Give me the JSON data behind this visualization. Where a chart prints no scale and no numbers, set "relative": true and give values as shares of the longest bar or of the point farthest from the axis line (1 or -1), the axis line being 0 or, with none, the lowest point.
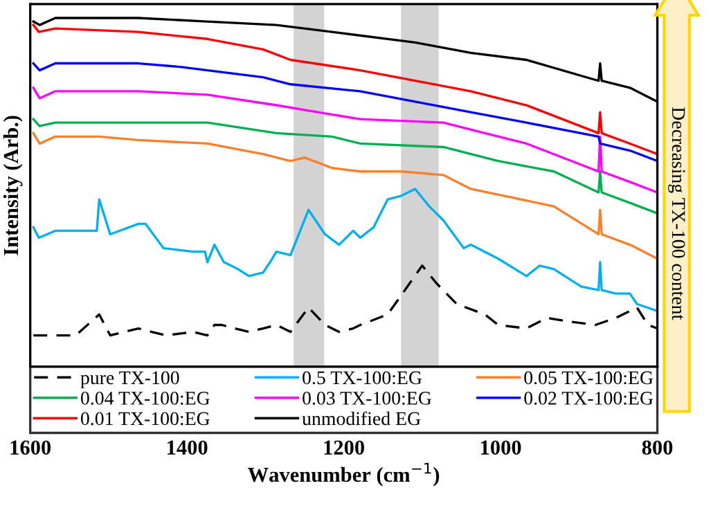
{
  "chart_data": {
    "type": "line",
    "relative": true,
    "xlabel": "Wavenumber (cm$^{−1}$)",
    "ylabel": "Intensity (Arb.)",
    "xlim": [
      1600,
      800
    ],
    "xticks": [
      1600,
      1400,
      1200,
      1000,
      800
    ],
    "grid": false,
    "legend": "bottom",
    "tick_labels": "x",
    "annotations": [
      "Decreasing TX-100 content"
    ],
    "bands": [
      {
        "axis": "x",
        "from": 1264,
        "to": 1225,
        "color": "#d3d3d3"
      },
      {
        "axis": "x",
        "from": 1127,
        "to": 1079,
        "color": "#d3d3d3"
      }
    ],
    "series": [
      {
        "name": "pure TX-100",
        "color": "#000000",
        "line_style": "dashed",
        "x": [
          1596,
          1542,
          1512,
          1498,
          1462,
          1445,
          1427,
          1392,
          1374,
          1365,
          1356,
          1339,
          1321,
          1303,
          1286,
          1268,
          1245,
          1224,
          1206,
          1188,
          1179,
          1144,
          1100,
          1082,
          1056,
          1020,
          1003,
          967,
          941,
          914,
          879,
          853,
          826,
          812,
          800
        ],
        "values": [
          0.09,
          0.09,
          0.15,
          0.09,
          0.11,
          0.1,
          0.09,
          0.1,
          0.09,
          0.12,
          0.12,
          0.11,
          0.1,
          0.11,
          0.12,
          0.1,
          0.17,
          0.12,
          0.1,
          0.11,
          0.12,
          0.15,
          0.29,
          0.24,
          0.18,
          0.15,
          0.12,
          0.11,
          0.14,
          0.13,
          0.12,
          0.14,
          0.17,
          0.12,
          0.11
        ]
      },
      {
        "name": "0.5 TX-100:EG",
        "color": "#00b0f0",
        "x": [
          1596,
          1589,
          1568,
          1515,
          1512,
          1498,
          1462,
          1453,
          1430,
          1392,
          1377,
          1374,
          1365,
          1353,
          1335,
          1321,
          1303,
          1294,
          1286,
          1268,
          1245,
          1224,
          1206,
          1188,
          1179,
          1162,
          1144,
          1127,
          1109,
          1091,
          1073,
          1047,
          1038,
          1003,
          967,
          950,
          932,
          897,
          875,
          873,
          871,
          853,
          835,
          826,
          800
        ],
        "values": [
          0.4,
          0.37,
          0.39,
          0.39,
          0.48,
          0.38,
          0.41,
          0.41,
          0.34,
          0.33,
          0.33,
          0.3,
          0.35,
          0.3,
          0.28,
          0.26,
          0.27,
          0.3,
          0.33,
          0.32,
          0.45,
          0.38,
          0.35,
          0.39,
          0.37,
          0.4,
          0.48,
          0.49,
          0.51,
          0.46,
          0.42,
          0.34,
          0.35,
          0.31,
          0.26,
          0.29,
          0.28,
          0.23,
          0.22,
          0.3,
          0.22,
          0.21,
          0.21,
          0.18,
          0.16
        ]
      },
      {
        "name": "0.05 TX-100:EG",
        "color": "#ff7f27",
        "x": [
          1596,
          1588,
          1568,
          1512,
          1462,
          1374,
          1303,
          1268,
          1250,
          1215,
          1179,
          1127,
          1073,
          1038,
          932,
          875,
          873,
          871,
          835,
          800
        ],
        "values": [
          0.67,
          0.64,
          0.66,
          0.66,
          0.65,
          0.64,
          0.61,
          0.59,
          0.6,
          0.57,
          0.56,
          0.56,
          0.55,
          0.51,
          0.46,
          0.38,
          0.45,
          0.38,
          0.35,
          0.31
        ]
      },
      {
        "name": "0.04 TX-100:EG",
        "color": "#00b050",
        "x": [
          1596,
          1588,
          1568,
          1462,
          1374,
          1286,
          1215,
          1179,
          1073,
          1003,
          932,
          875,
          873,
          871,
          835,
          800
        ],
        "values": [
          0.71,
          0.69,
          0.7,
          0.7,
          0.7,
          0.67,
          0.66,
          0.64,
          0.63,
          0.59,
          0.56,
          0.5,
          0.56,
          0.5,
          0.47,
          0.44
        ]
      },
      {
        "name": "0.03 TX-100:EG",
        "color": "#ff00ff",
        "x": [
          1596,
          1588,
          1568,
          1462,
          1374,
          1286,
          1233,
          1179,
          1073,
          1020,
          967,
          875,
          873,
          871,
          835,
          800
        ],
        "values": [
          0.8,
          0.77,
          0.79,
          0.79,
          0.78,
          0.75,
          0.73,
          0.71,
          0.7,
          0.67,
          0.64,
          0.56,
          0.66,
          0.56,
          0.53,
          0.5
        ]
      },
      {
        "name": "0.02 TX-100:EG",
        "color": "#0000ff",
        "x": [
          1596,
          1588,
          1568,
          1462,
          1409,
          1303,
          1268,
          1179,
          1109,
          1038,
          967,
          875,
          873,
          835,
          800
        ],
        "values": [
          0.87,
          0.85,
          0.87,
          0.87,
          0.86,
          0.83,
          0.81,
          0.79,
          0.76,
          0.73,
          0.7,
          0.66,
          0.64,
          0.62,
          0.59
        ]
      },
      {
        "name": "0.01 TX-100:EG",
        "color": "#ff0000",
        "x": [
          1596,
          1589,
          1568,
          1462,
          1374,
          1303,
          1268,
          1179,
          1109,
          1038,
          967,
          875,
          873,
          871,
          835,
          800
        ],
        "values": [
          0.98,
          0.96,
          0.97,
          0.96,
          0.94,
          0.91,
          0.88,
          0.85,
          0.82,
          0.79,
          0.75,
          0.67,
          0.73,
          0.67,
          0.64,
          0.61
        ]
      },
      {
        "name": "unmodified EG",
        "color": "#000000",
        "x": [
          1596,
          1588,
          1568,
          1462,
          1374,
          1286,
          1215,
          1109,
          1038,
          967,
          875,
          873,
          871,
          835,
          800
        ],
        "values": [
          0.99,
          0.98,
          1.0,
          1.0,
          0.99,
          0.98,
          0.96,
          0.93,
          0.9,
          0.88,
          0.82,
          0.87,
          0.82,
          0.8,
          0.76
        ]
      }
    ]
  }
}
